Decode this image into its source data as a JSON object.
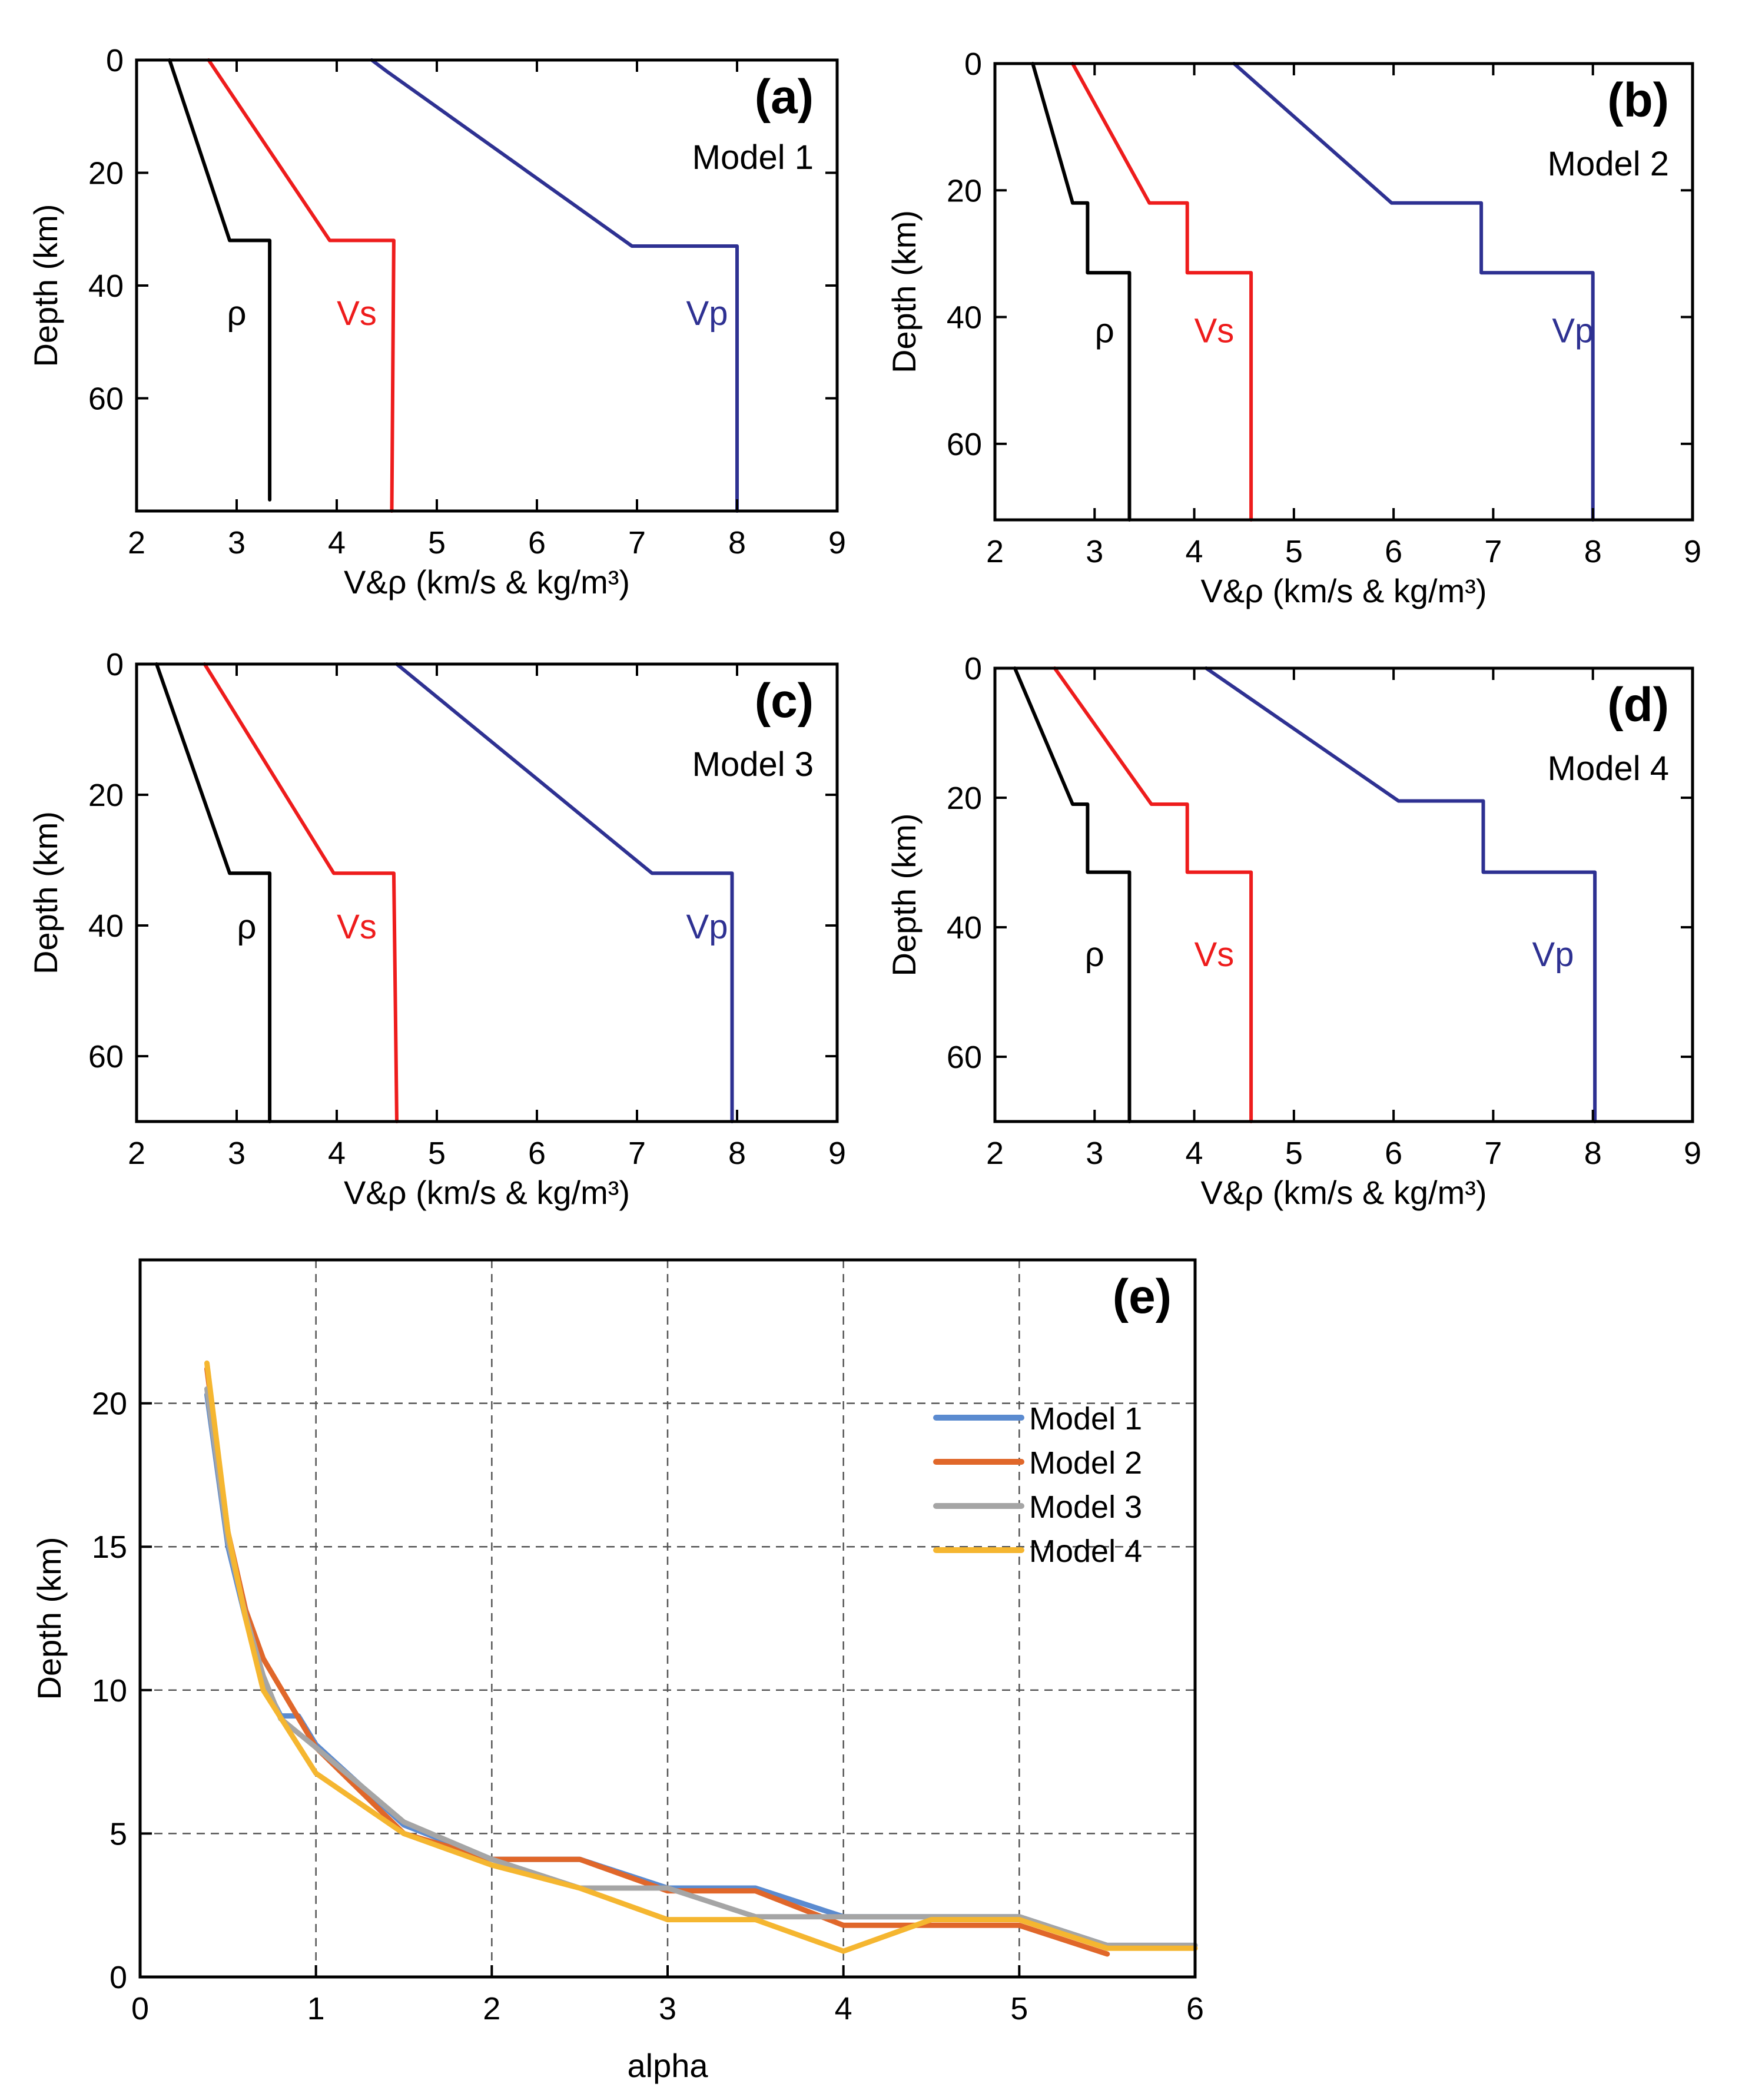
{
  "chart_data": [
    {
      "type": "line",
      "panel_label": "(a)",
      "model_label": "Model 1",
      "xlabel": "V&ρ (km/s & kg/m³)",
      "ylabel": "Depth (km)",
      "xlim": [
        2,
        9
      ],
      "ylim": [
        0,
        80
      ],
      "x_ticks": [
        2,
        3,
        4,
        5,
        6,
        7,
        8,
        9
      ],
      "y_ticks": [
        0,
        20,
        40,
        60
      ],
      "series": [
        {
          "name": "ρ",
          "color": "#000000",
          "label": "ρ",
          "label_at": [
            3.0,
            47
          ],
          "points": [
            [
              2.33,
              0
            ],
            [
              2.93,
              32
            ],
            [
              3.33,
              32
            ],
            [
              3.33,
              78
            ]
          ]
        },
        {
          "name": "Vs",
          "color": "#ee1c1c",
          "label": "Vs",
          "label_at": [
            4.2,
            47
          ],
          "points": [
            [
              2.72,
              0
            ],
            [
              3.93,
              32
            ],
            [
              4.57,
              32
            ],
            [
              4.55,
              80
            ]
          ]
        },
        {
          "name": "Vp",
          "color": "#2e3192",
          "label": "Vp",
          "label_at": [
            7.7,
            47
          ],
          "points": [
            [
              4.35,
              0
            ],
            [
              4.5,
              2
            ],
            [
              6.95,
              33
            ],
            [
              8.0,
              33
            ],
            [
              8.0,
              80
            ]
          ]
        }
      ]
    },
    {
      "type": "line",
      "panel_label": "(b)",
      "model_label": "Model 2",
      "xlabel": "V&ρ (km/s & kg/m³)",
      "ylabel": "Depth (km)",
      "xlim": [
        2,
        9
      ],
      "ylim": [
        0,
        72
      ],
      "x_ticks": [
        2,
        3,
        4,
        5,
        6,
        7,
        8,
        9
      ],
      "y_ticks": [
        0,
        20,
        40,
        60
      ],
      "series": [
        {
          "name": "ρ",
          "color": "#000000",
          "label": "ρ",
          "label_at": [
            3.1,
            44
          ],
          "points": [
            [
              2.38,
              0
            ],
            [
              2.78,
              22
            ],
            [
              2.93,
              22
            ],
            [
              2.93,
              33
            ],
            [
              3.35,
              33
            ],
            [
              3.35,
              72
            ]
          ]
        },
        {
          "name": "Vs",
          "color": "#ee1c1c",
          "label": "Vs",
          "label_at": [
            4.2,
            44
          ],
          "points": [
            [
              2.78,
              0
            ],
            [
              3.55,
              22
            ],
            [
              3.93,
              22
            ],
            [
              3.93,
              33
            ],
            [
              4.57,
              33
            ],
            [
              4.57,
              72
            ]
          ]
        },
        {
          "name": "Vp",
          "color": "#2e3192",
          "label": "Vp",
          "label_at": [
            7.8,
            44
          ],
          "points": [
            [
              4.4,
              0
            ],
            [
              5.98,
              22
            ],
            [
              6.88,
              22
            ],
            [
              6.88,
              33
            ],
            [
              8.0,
              33
            ],
            [
              8.0,
              72
            ]
          ]
        }
      ]
    },
    {
      "type": "line",
      "panel_label": "(c)",
      "model_label": "Model 3",
      "xlabel": "V&ρ (km/s & kg/m³)",
      "ylabel": "Depth (km)",
      "xlim": [
        2,
        9
      ],
      "ylim": [
        0,
        70
      ],
      "x_ticks": [
        2,
        3,
        4,
        5,
        6,
        7,
        8,
        9
      ],
      "y_ticks": [
        0,
        20,
        40,
        60
      ],
      "series": [
        {
          "name": "ρ",
          "color": "#000000",
          "label": "ρ",
          "label_at": [
            3.1,
            42
          ],
          "points": [
            [
              2.2,
              0
            ],
            [
              2.93,
              32
            ],
            [
              3.33,
              32
            ],
            [
              3.33,
              70
            ]
          ]
        },
        {
          "name": "Vs",
          "color": "#ee1c1c",
          "label": "Vs",
          "label_at": [
            4.2,
            42
          ],
          "points": [
            [
              2.68,
              0
            ],
            [
              3.97,
              32
            ],
            [
              4.57,
              32
            ],
            [
              4.6,
              70
            ]
          ]
        },
        {
          "name": "Vp",
          "color": "#2e3192",
          "label": "Vp",
          "label_at": [
            7.7,
            42
          ],
          "points": [
            [
              4.6,
              0
            ],
            [
              7.15,
              32
            ],
            [
              7.95,
              32
            ],
            [
              7.95,
              70
            ]
          ]
        }
      ]
    },
    {
      "type": "line",
      "panel_label": "(d)",
      "model_label": "Model 4",
      "xlabel": "V&ρ (km/s & kg/m³)",
      "ylabel": "Depth (km)",
      "xlim": [
        2,
        9
      ],
      "ylim": [
        0,
        70
      ],
      "x_ticks": [
        2,
        3,
        4,
        5,
        6,
        7,
        8,
        9
      ],
      "y_ticks": [
        0,
        20,
        40,
        60
      ],
      "series": [
        {
          "name": "ρ",
          "color": "#000000",
          "label": "ρ",
          "label_at": [
            3.0,
            46
          ],
          "points": [
            [
              2.2,
              0
            ],
            [
              2.78,
              21
            ],
            [
              2.93,
              21
            ],
            [
              2.93,
              31.5
            ],
            [
              3.35,
              31.5
            ],
            [
              3.35,
              70
            ]
          ]
        },
        {
          "name": "Vs",
          "color": "#ee1c1c",
          "label": "Vs",
          "label_at": [
            4.2,
            46
          ],
          "points": [
            [
              2.6,
              0
            ],
            [
              3.57,
              21
            ],
            [
              3.93,
              21
            ],
            [
              3.93,
              31.5
            ],
            [
              4.57,
              31.5
            ],
            [
              4.57,
              70
            ]
          ]
        },
        {
          "name": "Vp",
          "color": "#2e3192",
          "label": "Vp",
          "label_at": [
            7.6,
            46
          ],
          "points": [
            [
              4.12,
              0
            ],
            [
              6.05,
              20.5
            ],
            [
              6.9,
              20.5
            ],
            [
              6.9,
              31.5
            ],
            [
              8.02,
              31.5
            ],
            [
              8.02,
              70
            ]
          ]
        }
      ]
    },
    {
      "type": "line",
      "panel_label": "(e)",
      "xlabel": "alpha",
      "ylabel": "Depth (km)",
      "xlim": [
        0,
        6
      ],
      "ylim": [
        0,
        25
      ],
      "x_ticks": [
        0,
        1,
        2,
        3,
        4,
        5,
        6
      ],
      "y_ticks": [
        0,
        5,
        10,
        15,
        20
      ],
      "grid": true,
      "legend": "upper-right",
      "series": [
        {
          "name": "Model 1",
          "color": "#5b8bd0",
          "points": [
            [
              0.38,
              20.3
            ],
            [
              0.5,
              15
            ],
            [
              0.6,
              12.5
            ],
            [
              0.7,
              10.3
            ],
            [
              0.8,
              9.1
            ],
            [
              0.9,
              9.1
            ],
            [
              1.0,
              8.1
            ],
            [
              1.5,
              5.3
            ],
            [
              2.0,
              4.1
            ],
            [
              2.5,
              4.1
            ],
            [
              3.0,
              3.1
            ],
            [
              3.5,
              3.1
            ],
            [
              4.0,
              2.1
            ],
            [
              4.5,
              2.1
            ],
            [
              5.0,
              2.1
            ],
            [
              5.5,
              1.1
            ],
            [
              6.0,
              1.1
            ]
          ]
        },
        {
          "name": "Model 2",
          "color": "#e0672a",
          "points": [
            [
              0.38,
              21.2
            ],
            [
              0.5,
              15.5
            ],
            [
              0.6,
              12.8
            ],
            [
              0.7,
              11.1
            ],
            [
              1.0,
              8.0
            ],
            [
              1.5,
              5.0
            ],
            [
              2.0,
              4.1
            ],
            [
              2.5,
              4.1
            ],
            [
              3.0,
              3.0
            ],
            [
              3.5,
              3.0
            ],
            [
              4.0,
              1.8
            ],
            [
              4.5,
              1.8
            ],
            [
              5.0,
              1.8
            ],
            [
              5.5,
              0.8
            ]
          ]
        },
        {
          "name": "Model 3",
          "color": "#a5a5a5",
          "points": [
            [
              0.38,
              20.5
            ],
            [
              0.5,
              15.2
            ],
            [
              0.6,
              12.6
            ],
            [
              0.7,
              10.5
            ],
            [
              0.8,
              9.0
            ],
            [
              1.0,
              8.0
            ],
            [
              1.5,
              5.4
            ],
            [
              2.0,
              4.1
            ],
            [
              2.5,
              3.1
            ],
            [
              3.0,
              3.1
            ],
            [
              3.5,
              2.1
            ],
            [
              4.0,
              2.1
            ],
            [
              4.5,
              2.1
            ],
            [
              5.0,
              2.1
            ],
            [
              5.5,
              1.1
            ],
            [
              6.0,
              1.1
            ]
          ]
        },
        {
          "name": "Model 4",
          "color": "#f5b630",
          "points": [
            [
              0.38,
              21.4
            ],
            [
              0.5,
              15.5
            ],
            [
              0.6,
              12.5
            ],
            [
              0.7,
              10.0
            ],
            [
              1.0,
              7.1
            ],
            [
              1.5,
              5.0
            ],
            [
              2.0,
              3.9
            ],
            [
              2.5,
              3.1
            ],
            [
              3.0,
              2.0
            ],
            [
              3.5,
              2.0
            ],
            [
              4.0,
              0.9
            ],
            [
              4.5,
              2.0
            ],
            [
              5.0,
              2.0
            ],
            [
              5.5,
              1.0
            ],
            [
              6.0,
              1.0
            ]
          ]
        }
      ]
    }
  ]
}
